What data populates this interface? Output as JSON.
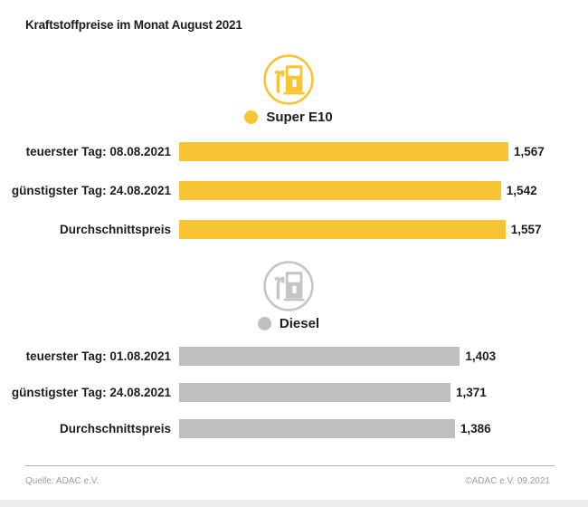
{
  "title": "Kraftstoffpreise im Monat August 2021",
  "colors": {
    "super_e10": "#F8C433",
    "diesel_bar": "#BFBFBF",
    "diesel_icon": "#C5C5C5",
    "text": "#1D1D1B",
    "footer_text": "#9D9D9D"
  },
  "footer": {
    "source": "Quelle: ADAC e.V.",
    "copyright": "©ADAC e.V. 09.2021"
  },
  "chart_data": {
    "type": "bar",
    "orientation": "horizontal",
    "title": "Kraftstoffpreise im Monat August 2021",
    "value_format": "german-decimal-comma",
    "grid": false,
    "legend_position": "above-each-group",
    "groups": [
      {
        "name": "Super E10",
        "icon": "fuel-pump-icon",
        "color": "#F8C433",
        "icon_color": "#F8C433",
        "categories": [
          "teuerster Tag: 08.08.2021",
          "günstigster Tag: 24.08.2021",
          "Durchschnittspreis"
        ],
        "values": [
          1.567,
          1.542,
          1.557
        ],
        "value_labels": [
          "1,567",
          "1,542",
          "1,557"
        ]
      },
      {
        "name": "Diesel",
        "icon": "fuel-pump-icon",
        "color": "#BFBFBF",
        "icon_color": "#C5C5C5",
        "categories": [
          "teuerster Tag: 01.08.2021",
          "günstigster Tag: 24.08.2021",
          "Durchschnittspreis"
        ],
        "values": [
          1.403,
          1.371,
          1.386
        ],
        "value_labels": [
          "1,403",
          "1,371",
          "1,386"
        ]
      }
    ]
  }
}
